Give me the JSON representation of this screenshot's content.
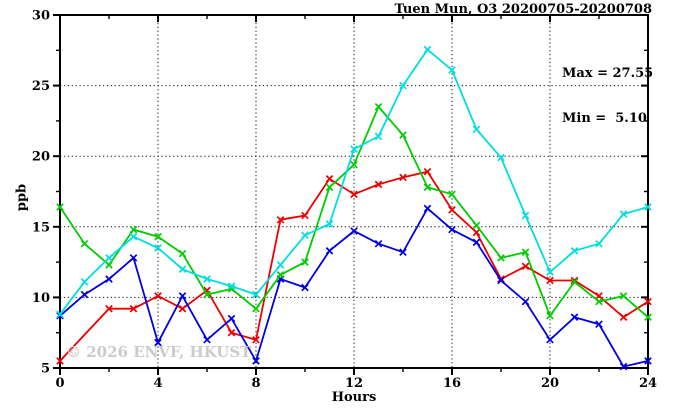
{
  "title": "Tuen Mun, O3 20200705-20200708",
  "annotation": {
    "max_label": "Max = 27.55",
    "min_label": "Min =  5.10"
  },
  "watermark": "© 2026 ENVF, HKUST",
  "chart_data": {
    "type": "line",
    "title": "Tuen Mun, O3 20200705-20200708",
    "xlabel": "Hours",
    "ylabel": "ppb",
    "xlim": [
      0,
      24
    ],
    "ylim": [
      5,
      30
    ],
    "x_major_ticks": [
      0,
      4,
      8,
      12,
      16,
      20,
      24
    ],
    "x_minor_step": 2,
    "y_major_ticks": [
      5,
      10,
      15,
      20,
      25,
      30
    ],
    "y_minor_step": 2.5,
    "grid": {
      "style": "dotted",
      "x_lines": [
        4,
        8,
        12,
        16,
        20
      ],
      "y_lines": [
        10,
        15,
        20,
        25
      ]
    },
    "legend": "none",
    "marker": "x-cross",
    "x": [
      0,
      1,
      2,
      3,
      4,
      5,
      6,
      7,
      8,
      9,
      10,
      11,
      12,
      13,
      14,
      15,
      16,
      17,
      18,
      19,
      20,
      21,
      22,
      23,
      24
    ],
    "series": [
      {
        "name": "day-series-red",
        "color": "#ee0000",
        "values": [
          5.5,
          null,
          9.2,
          9.2,
          10.1,
          9.2,
          10.5,
          7.5,
          7.0,
          15.5,
          15.8,
          18.4,
          17.3,
          18.0,
          18.5,
          18.9,
          16.2,
          14.6,
          11.3,
          12.2,
          11.2,
          11.2,
          10.1,
          8.6,
          9.7
        ]
      },
      {
        "name": "day-series-blue",
        "color": "#0000e0",
        "values": [
          8.7,
          10.2,
          11.3,
          12.8,
          6.8,
          10.1,
          7.0,
          8.5,
          5.5,
          11.3,
          10.7,
          13.3,
          14.7,
          13.8,
          13.2,
          16.3,
          14.8,
          13.9,
          11.2,
          9.7,
          7.0,
          8.6,
          8.1,
          5.1,
          5.5
        ]
      },
      {
        "name": "day-series-green",
        "color": "#00cc00",
        "values": [
          16.4,
          13.8,
          12.3,
          14.8,
          14.3,
          13.1,
          10.2,
          10.6,
          9.2,
          11.6,
          12.5,
          17.8,
          19.4,
          23.5,
          21.5,
          17.8,
          17.3,
          15.1,
          12.8,
          13.2,
          8.7,
          11.1,
          9.7,
          10.1,
          8.6
        ]
      },
      {
        "name": "day-series-cyan",
        "color": "#00dede",
        "values": [
          8.8,
          11.1,
          12.8,
          14.3,
          13.5,
          12.0,
          11.3,
          10.8,
          10.2,
          12.3,
          14.4,
          15.2,
          20.5,
          21.4,
          25.0,
          27.55,
          26.1,
          21.9,
          19.9,
          15.8,
          11.8,
          13.3,
          13.8,
          15.9,
          16.4
        ]
      }
    ],
    "stats": {
      "max": 27.55,
      "min": 5.1
    }
  }
}
